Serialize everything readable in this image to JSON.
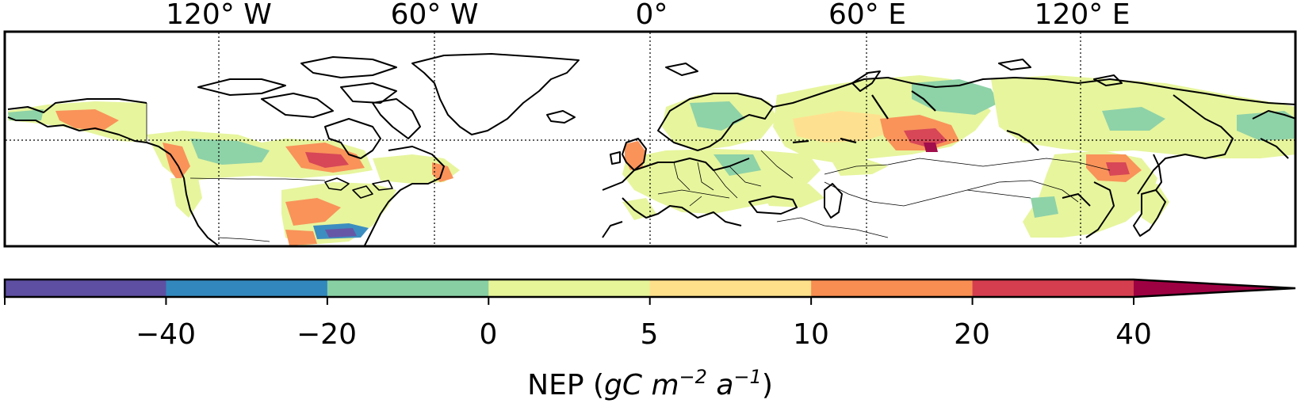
{
  "map": {
    "longitude_labels": [
      "120° W",
      "60° W",
      "0°",
      "60° E",
      "120° E"
    ],
    "longitude_values": [
      -120,
      -60,
      0,
      60,
      120
    ],
    "latitude_gridline": 60,
    "extent": {
      "lon_min": -180,
      "lon_max": 180,
      "lat_min": 30,
      "lat_max": 90
    },
    "colors": {
      "neg_40_plus": "#5e4fa2",
      "neg_20_40": "#3288bd",
      "neg_0_20": "#88d0a4",
      "pos_0_5": "#e6f598",
      "pos_5_10": "#fee08b",
      "pos_10_20": "#f98e52",
      "pos_20_40": "#d53e4f",
      "pos_40_plus": "#9e0142"
    }
  },
  "colorbar": {
    "bounds": [
      -60,
      -40,
      -20,
      0,
      5,
      10,
      20,
      40
    ],
    "tick_labels": [
      "−40",
      "−20",
      "0",
      "5",
      "10",
      "20",
      "40"
    ],
    "segment_colors": [
      "#5e4fa2",
      "#3288bd",
      "#88d0a4",
      "#e6f598",
      "#fee08b",
      "#f98e52",
      "#d53e4f"
    ],
    "extend_color": "#9e0142",
    "label_main": "NEP (",
    "label_gc": "gC m",
    "label_exp1": "−2",
    "label_a": " a",
    "label_exp2": "−1",
    "label_close": ")"
  }
}
